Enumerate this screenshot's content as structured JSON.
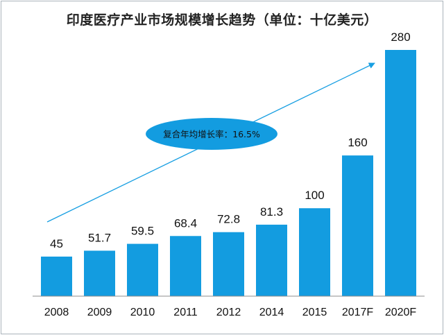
{
  "chart_data": {
    "type": "bar",
    "title": "印度医疗产业市场规模增长趋势（单位：十亿美元）",
    "categories": [
      "2008",
      "2009",
      "2010",
      "2011",
      "2012",
      "2014",
      "2015",
      "2017F",
      "2020F"
    ],
    "values": [
      45,
      51.7,
      59.5,
      68.4,
      72.8,
      81.3,
      100,
      160,
      280
    ],
    "value_labels": [
      "45",
      "51.7",
      "59.5",
      "68.4",
      "72.8",
      "81.3",
      "100",
      "160",
      "280"
    ],
    "ylim": [
      0,
      280
    ],
    "xlabel": "",
    "ylabel": "",
    "grid": false,
    "annotation": "复合年均增长率：16.5%",
    "colors": {
      "bar": "#139ce0",
      "arrow": "#189fe2",
      "ellipse": "#139ce0"
    }
  }
}
